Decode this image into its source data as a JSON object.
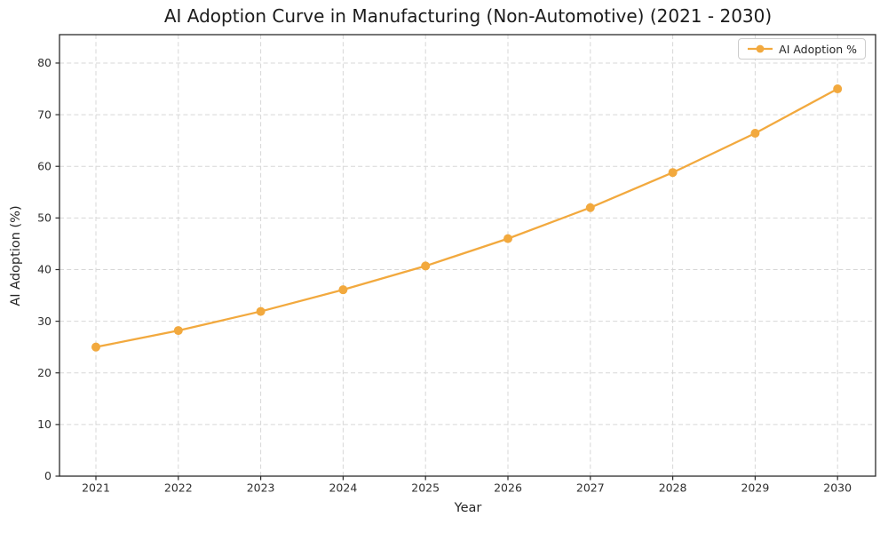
{
  "page": {
    "background": "#FFFFFF"
  },
  "chart_data": {
    "type": "line",
    "title": "AI Adoption Curve in Manufacturing (Non-Automotive) (2021 - 2030)",
    "xlabel": "Year",
    "ylabel": "AI Adoption (%)",
    "categories": [
      "2021",
      "2022",
      "2023",
      "2024",
      "2025",
      "2026",
      "2027",
      "2028",
      "2029",
      "2030"
    ],
    "series": [
      {
        "name": "AI Adoption %",
        "color": "#F2A93E",
        "marker": "circle",
        "values": [
          25.0,
          28.2,
          31.9,
          36.1,
          40.7,
          46.0,
          52.0,
          58.8,
          66.4,
          75.0
        ]
      }
    ],
    "ylim": [
      0,
      85.5
    ],
    "y_ticks": [
      0,
      10,
      20,
      30,
      40,
      50,
      60,
      70,
      80
    ],
    "grid": {
      "visible": true,
      "line_style": "dashed",
      "color": "#D7D7D7"
    },
    "legend": {
      "position": "upper-right",
      "entries": [
        "AI Adoption %"
      ]
    },
    "axis_color": "#2B2B2B",
    "text_color": "#262626"
  }
}
